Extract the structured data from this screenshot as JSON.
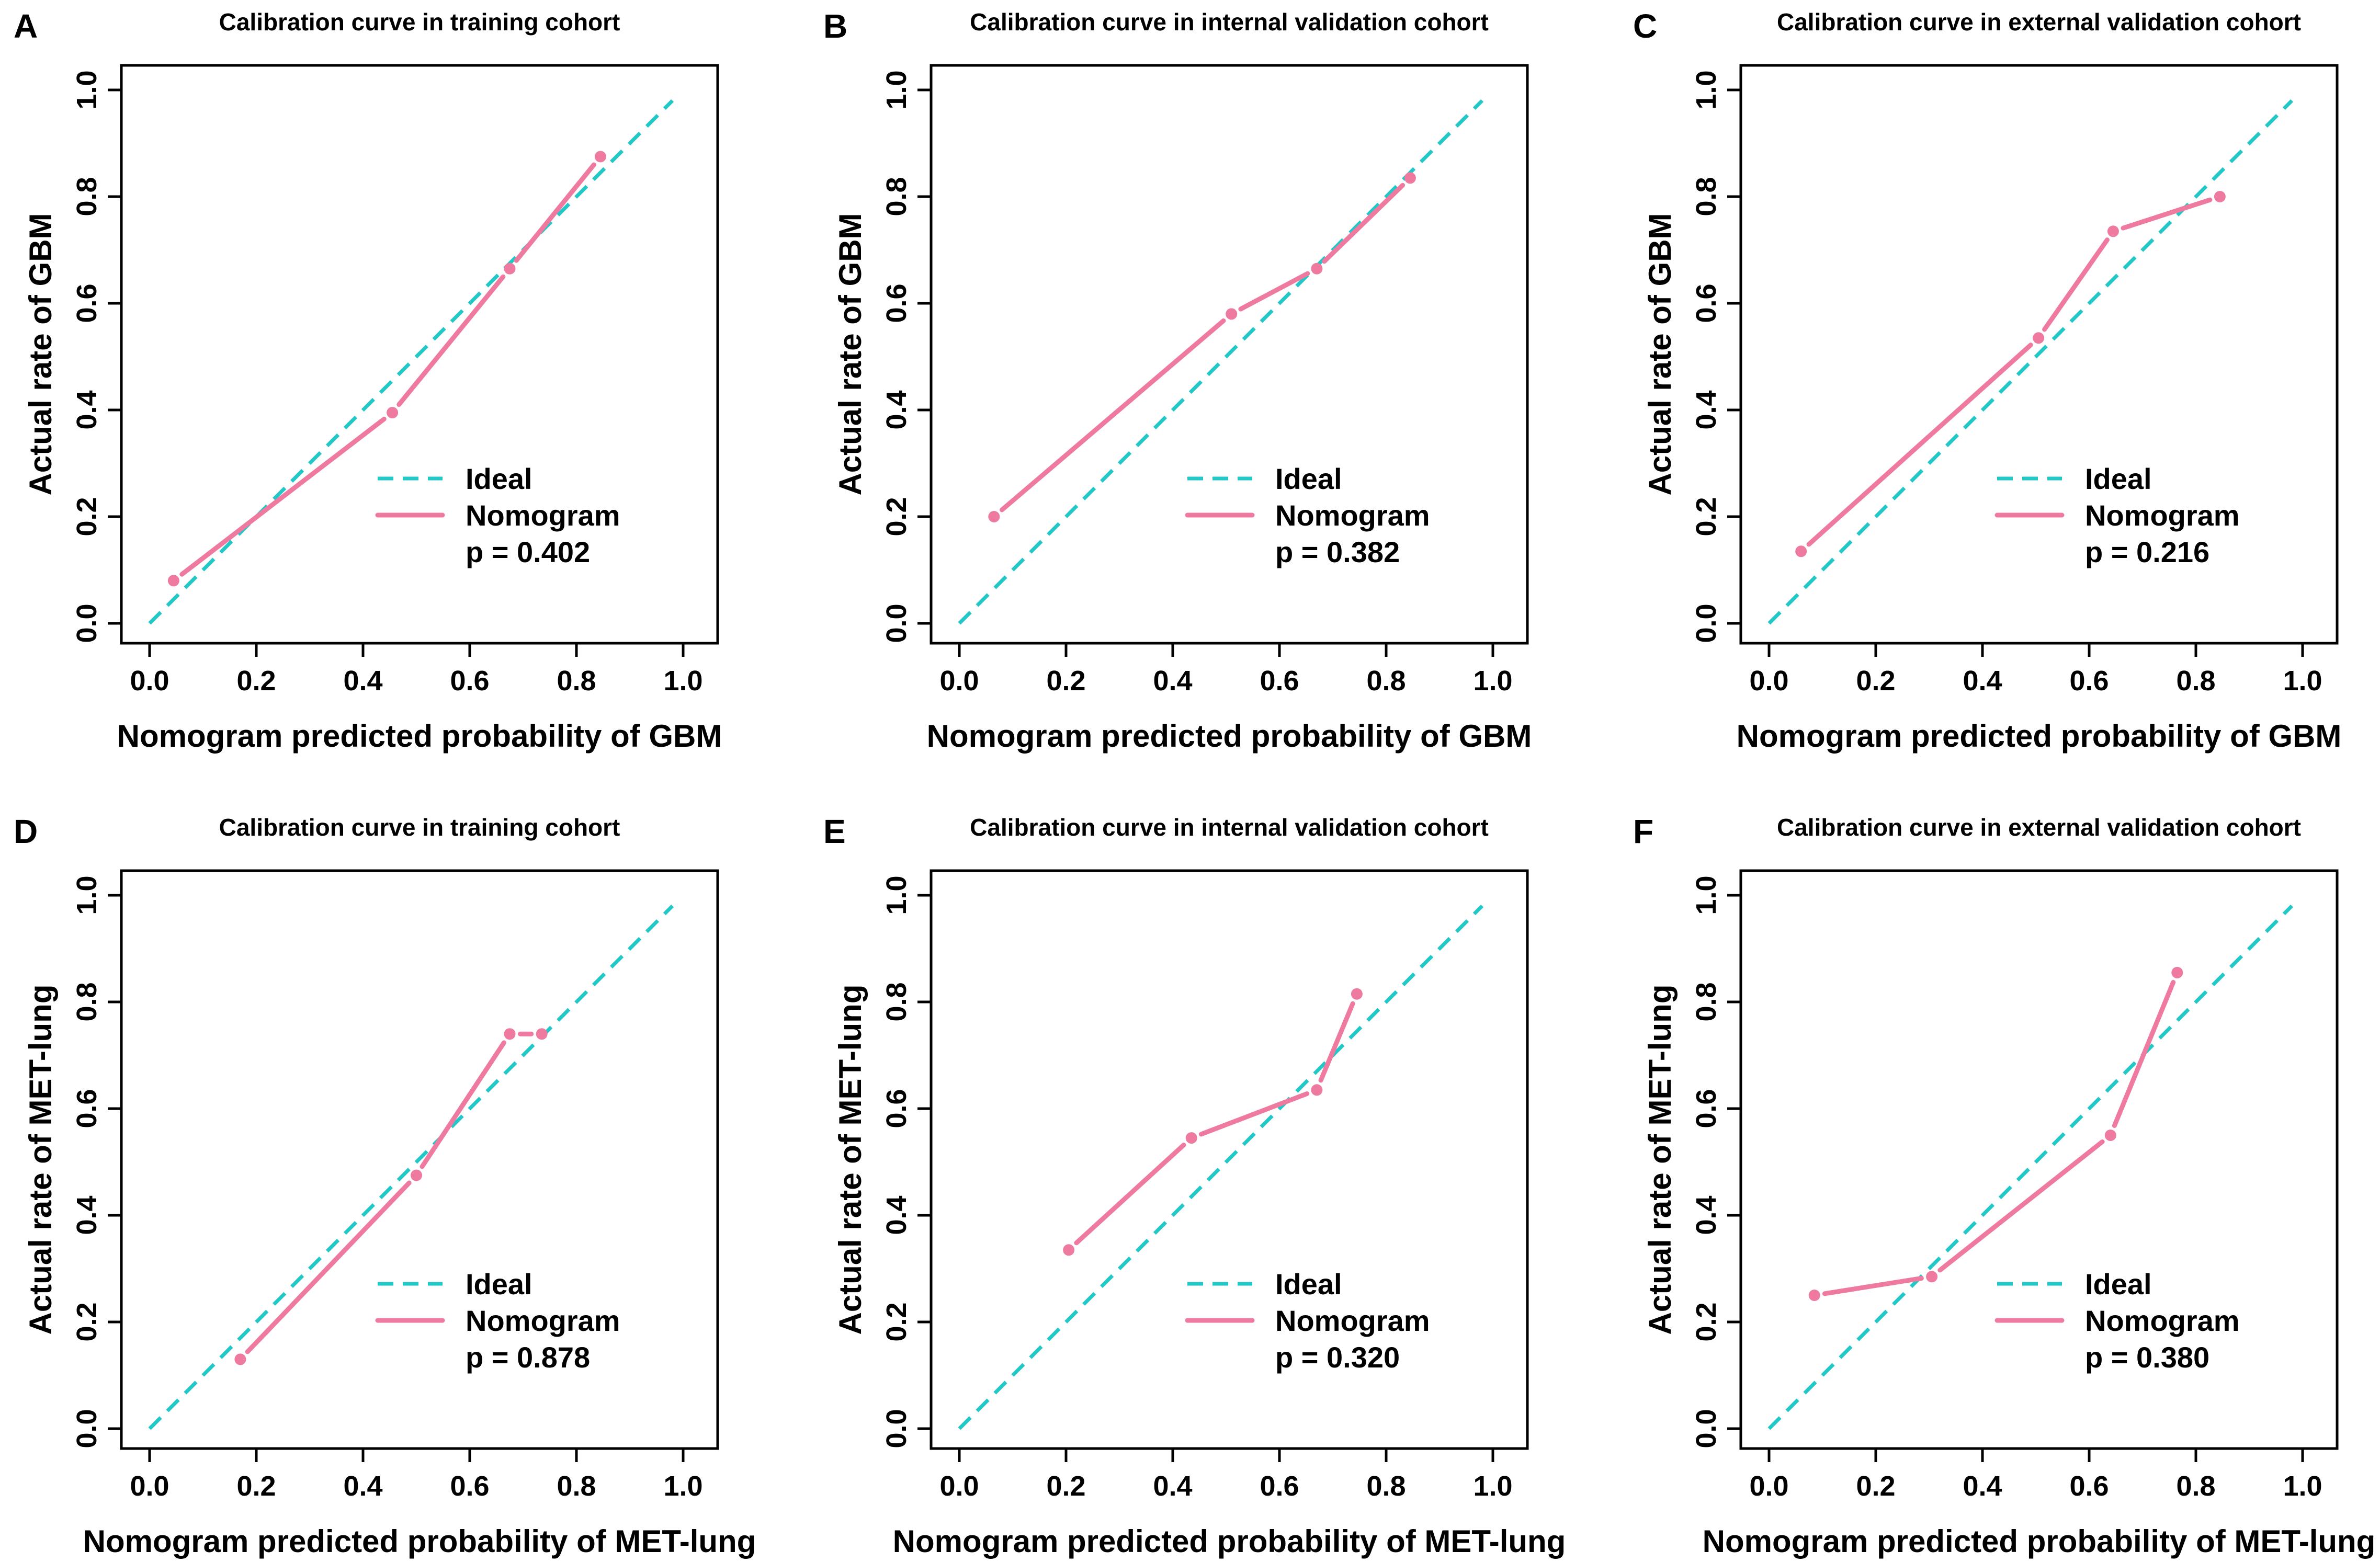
{
  "figure": {
    "colors": {
      "ideal": "#22c7c7",
      "nomogram": "#ee7aa0",
      "frame": "#000000"
    }
  },
  "chart_data": [
    {
      "type": "line",
      "panel": "A",
      "title": "Calibration curve in training cohort",
      "xlabel": "Nomogram predicted probability of GBM",
      "ylabel": "Actual rate of GBM",
      "xlim": [
        0,
        1
      ],
      "ylim": [
        0,
        1
      ],
      "ticks": [
        "0.0",
        "0.2",
        "0.4",
        "0.6",
        "0.8",
        "1.0"
      ],
      "ideal": {
        "name": "Ideal",
        "x": [
          0,
          0.98
        ],
        "y": [
          0,
          0.98
        ]
      },
      "nomogram": {
        "name": "Nomogram",
        "x": [
          0.045,
          0.455,
          0.675,
          0.845
        ],
        "y": [
          0.08,
          0.395,
          0.665,
          0.875
        ]
      },
      "p_text": "p = 0.402"
    },
    {
      "type": "line",
      "panel": "B",
      "title": "Calibration curve in internal validation cohort",
      "xlabel": "Nomogram predicted probability of GBM",
      "ylabel": "Actual rate of GBM",
      "xlim": [
        0,
        1
      ],
      "ylim": [
        0,
        1
      ],
      "ticks": [
        "0.0",
        "0.2",
        "0.4",
        "0.6",
        "0.8",
        "1.0"
      ],
      "ideal": {
        "name": "Ideal",
        "x": [
          0,
          0.98
        ],
        "y": [
          0,
          0.98
        ]
      },
      "nomogram": {
        "name": "Nomogram",
        "x": [
          0.065,
          0.51,
          0.67,
          0.845
        ],
        "y": [
          0.2,
          0.58,
          0.665,
          0.835
        ]
      },
      "p_text": "p = 0.382"
    },
    {
      "type": "line",
      "panel": "C",
      "title": "Calibration curve in external validation cohort",
      "xlabel": "Nomogram predicted probability of GBM",
      "ylabel": "Actual rate of GBM",
      "xlim": [
        0,
        1
      ],
      "ylim": [
        0,
        1
      ],
      "ticks": [
        "0.0",
        "0.2",
        "0.4",
        "0.6",
        "0.8",
        "1.0"
      ],
      "ideal": {
        "name": "Ideal",
        "x": [
          0,
          0.98
        ],
        "y": [
          0,
          0.98
        ]
      },
      "nomogram": {
        "name": "Nomogram",
        "x": [
          0.06,
          0.505,
          0.645,
          0.845
        ],
        "y": [
          0.135,
          0.535,
          0.735,
          0.8
        ]
      },
      "p_text": "p = 0.216"
    },
    {
      "type": "line",
      "panel": "D",
      "title": "Calibration curve in training cohort",
      "xlabel": "Nomogram predicted probability of MET-lung",
      "ylabel": "Actual rate of MET-lung",
      "xlim": [
        0,
        1
      ],
      "ylim": [
        0,
        1
      ],
      "ticks": [
        "0.0",
        "0.2",
        "0.4",
        "0.6",
        "0.8",
        "1.0"
      ],
      "ideal": {
        "name": "Ideal",
        "x": [
          0,
          0.98
        ],
        "y": [
          0,
          0.98
        ]
      },
      "nomogram": {
        "name": "Nomogram",
        "x": [
          0.17,
          0.5,
          0.675,
          0.735
        ],
        "y": [
          0.13,
          0.475,
          0.74,
          0.74
        ]
      },
      "p_text": "p = 0.878"
    },
    {
      "type": "line",
      "panel": "E",
      "title": "Calibration curve in internal validation cohort",
      "xlabel": "Nomogram predicted probability of MET-lung",
      "ylabel": "Actual rate of MET-lung",
      "xlim": [
        0,
        1
      ],
      "ylim": [
        0,
        1
      ],
      "ticks": [
        "0.0",
        "0.2",
        "0.4",
        "0.6",
        "0.8",
        "1.0"
      ],
      "ideal": {
        "name": "Ideal",
        "x": [
          0,
          0.98
        ],
        "y": [
          0,
          0.98
        ]
      },
      "nomogram": {
        "name": "Nomogram",
        "x": [
          0.205,
          0.435,
          0.67,
          0.745
        ],
        "y": [
          0.335,
          0.545,
          0.635,
          0.815
        ]
      },
      "p_text": "p = 0.320"
    },
    {
      "type": "line",
      "panel": "F",
      "title": "Calibration curve in external validation cohort",
      "xlabel": "Nomogram predicted probability of MET-lung",
      "ylabel": "Actual rate of MET-lung",
      "xlim": [
        0,
        1
      ],
      "ylim": [
        0,
        1
      ],
      "ticks": [
        "0.0",
        "0.2",
        "0.4",
        "0.6",
        "0.8",
        "1.0"
      ],
      "ideal": {
        "name": "Ideal",
        "x": [
          0,
          0.98
        ],
        "y": [
          0,
          0.98
        ]
      },
      "nomogram": {
        "name": "Nomogram",
        "x": [
          0.085,
          0.305,
          0.64,
          0.765
        ],
        "y": [
          0.25,
          0.285,
          0.55,
          0.855
        ]
      },
      "p_text": "p = 0.380"
    }
  ]
}
